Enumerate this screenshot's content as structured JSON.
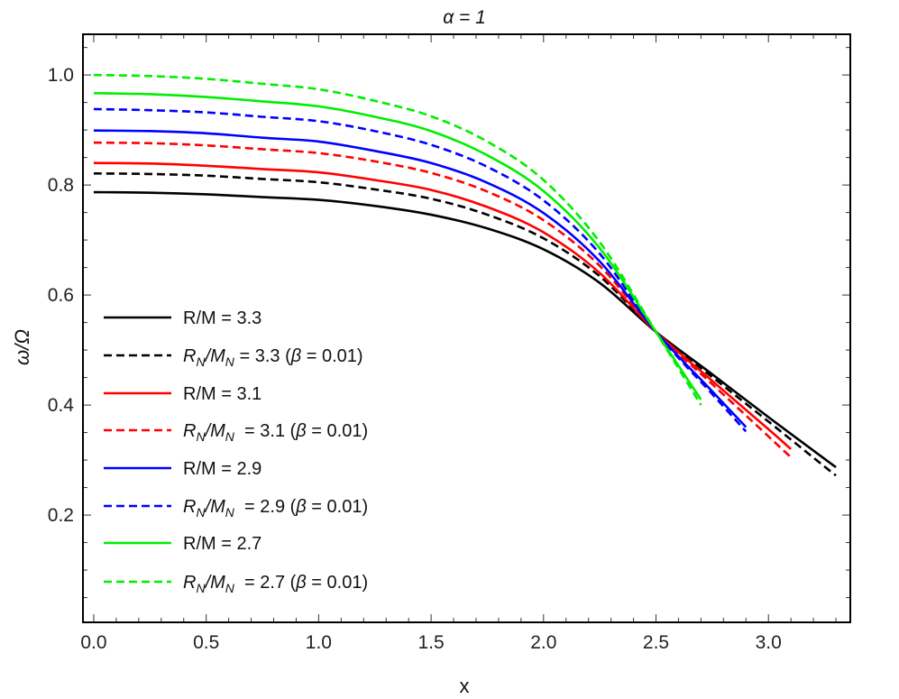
{
  "chart_data": {
    "type": "line",
    "title": "α = 1",
    "xlabel": "x",
    "ylabel": "ω/Ω",
    "xlim": [
      -0.048,
      3.364
    ],
    "ylim": [
      0.005,
      1.074
    ],
    "xticks": [
      "0.0",
      "0.5",
      "1.0",
      "1.5",
      "2.0",
      "2.5",
      "3.0"
    ],
    "yticks": [
      "0.2",
      "0.4",
      "0.6",
      "0.8",
      "1.0"
    ],
    "grid": false,
    "legend_position": "bottom-left",
    "series": [
      {
        "name": "R/M = 3.3",
        "color": "#000000",
        "dashed": false,
        "x": [
          0,
          0.25,
          0.5,
          0.75,
          1.0,
          1.25,
          1.5,
          1.75,
          2.0,
          2.25,
          2.5,
          2.75,
          3.0,
          3.25,
          3.3
        ],
        "y": [
          0.787,
          0.786,
          0.783,
          0.778,
          0.773,
          0.762,
          0.746,
          0.721,
          0.683,
          0.622,
          0.533,
          0.456,
          0.378,
          0.302,
          0.287
        ]
      },
      {
        "name": "R_N/M_N = 3.3 (β = 0.01)",
        "color": "#000000",
        "dashed": true,
        "x": [
          0,
          0.25,
          0.5,
          0.75,
          1.0,
          1.25,
          1.5,
          1.75,
          2.0,
          2.25,
          2.5,
          2.75,
          3.0,
          3.25,
          3.3
        ],
        "y": [
          0.821,
          0.82,
          0.817,
          0.811,
          0.805,
          0.792,
          0.775,
          0.746,
          0.703,
          0.634,
          0.533,
          0.451,
          0.37,
          0.288,
          0.272
        ]
      },
      {
        "name": "R/M = 3.1",
        "color": "#ff0000",
        "dashed": false,
        "x": [
          0,
          0.25,
          0.5,
          0.75,
          1.0,
          1.25,
          1.5,
          1.75,
          2.0,
          2.25,
          2.5,
          2.75,
          3.0,
          3.1
        ],
        "y": [
          0.84,
          0.839,
          0.835,
          0.829,
          0.823,
          0.809,
          0.791,
          0.76,
          0.714,
          0.64,
          0.533,
          0.444,
          0.356,
          0.32
        ]
      },
      {
        "name": "R_N/M_N  = 3.1 (β = 0.01)",
        "color": "#ff0000",
        "dashed": true,
        "x": [
          0,
          0.25,
          0.5,
          0.75,
          1.0,
          1.25,
          1.5,
          1.75,
          2.0,
          2.25,
          2.5,
          2.75,
          3.0,
          3.1
        ],
        "y": [
          0.877,
          0.876,
          0.872,
          0.865,
          0.858,
          0.843,
          0.822,
          0.788,
          0.736,
          0.653,
          0.533,
          0.438,
          0.343,
          0.305
        ]
      },
      {
        "name": "R/M = 2.9",
        "color": "#0000ff",
        "dashed": false,
        "x": [
          0,
          0.25,
          0.5,
          0.75,
          1.0,
          1.25,
          1.5,
          1.75,
          2.0,
          2.25,
          2.5,
          2.75,
          2.9
        ],
        "y": [
          0.899,
          0.898,
          0.894,
          0.886,
          0.879,
          0.862,
          0.84,
          0.804,
          0.749,
          0.661,
          0.533,
          0.425,
          0.36
        ]
      },
      {
        "name": "R_N/M_N  = 2.9 (β = 0.01)",
        "color": "#0000ff",
        "dashed": true,
        "x": [
          0,
          0.25,
          0.5,
          0.75,
          1.0,
          1.25,
          1.5,
          1.75,
          2.0,
          2.25,
          2.5,
          2.75,
          2.9
        ],
        "y": [
          0.938,
          0.936,
          0.932,
          0.924,
          0.916,
          0.898,
          0.873,
          0.833,
          0.772,
          0.675,
          0.533,
          0.42,
          0.352
        ]
      },
      {
        "name": "R/M = 2.7",
        "color": "#00ee00",
        "dashed": false,
        "x": [
          0,
          0.25,
          0.5,
          0.75,
          1.0,
          1.25,
          1.5,
          1.75,
          2.0,
          2.25,
          2.5,
          2.7
        ],
        "y": [
          0.967,
          0.965,
          0.96,
          0.952,
          0.943,
          0.924,
          0.898,
          0.854,
          0.789,
          0.685,
          0.533,
          0.41
        ]
      },
      {
        "name": "R_N/M_N  = 2.7 (β = 0.01)",
        "color": "#00ee00",
        "dashed": true,
        "x": [
          0,
          0.25,
          0.5,
          0.75,
          1.0,
          1.25,
          1.5,
          1.75,
          2.0,
          2.25,
          2.5,
          2.7
        ],
        "y": [
          1.0,
          0.998,
          0.993,
          0.984,
          0.974,
          0.953,
          0.925,
          0.879,
          0.809,
          0.696,
          0.533,
          0.4
        ]
      }
    ]
  }
}
